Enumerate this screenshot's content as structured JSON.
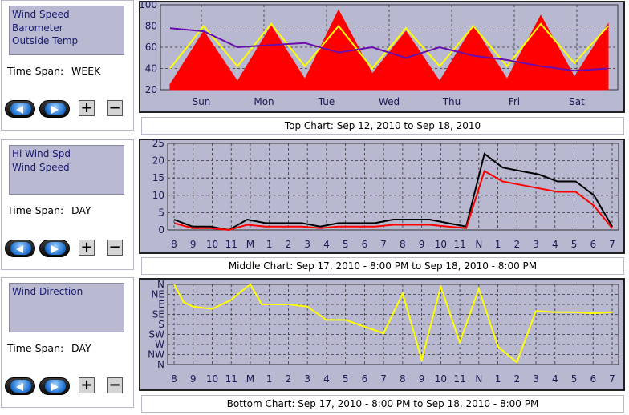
{
  "panels": [
    {
      "series": [
        "Wind Speed",
        "Barometer",
        "Outside Temp"
      ],
      "timespan_label": "Time Span:",
      "timespan_value": "WEEK"
    },
    {
      "series": [
        "Hi Wind Spd",
        "Wind Speed"
      ],
      "timespan_label": "Time Span:",
      "timespan_value": "DAY"
    },
    {
      "series": [
        "Wind Direction"
      ],
      "timespan_label": "Time Span:",
      "timespan_value": "DAY"
    }
  ],
  "controls": {
    "zoom_in": "+",
    "zoom_out": "−"
  },
  "captions": {
    "top": "Top Chart:  Sep 12, 2010  to  Sep 18, 2010",
    "middle": "Middle Chart:  Sep 17, 2010 - 8:00 PM  to  Sep 18, 2010 - 8:00 PM",
    "bottom": "Bottom Chart:  Sep 17, 2010 - 8:00 PM  to  Sep 18, 2010 - 8:00 PM"
  },
  "colors": {
    "plot_bg": "#b8b8d0",
    "wind": "#ff0000",
    "hi_wind": "#000000",
    "barometer": "#6a0dad",
    "temp": "#ffff00",
    "direction": "#ffff00"
  },
  "chart_data": [
    {
      "type": "line",
      "ylim": [
        20,
        100
      ],
      "yticks": [
        "20",
        "40",
        "60",
        "80",
        "100"
      ],
      "xticks": [
        "Sun",
        "Mon",
        "Tue",
        "Wed",
        "Thu",
        "Fri",
        "Sat"
      ],
      "x": [
        0,
        0.5,
        1,
        1.5,
        2,
        2.5,
        3,
        3.5,
        4,
        4.5,
        5,
        5.5,
        6,
        6.5
      ],
      "series": [
        {
          "key": "wind",
          "style": "area",
          "values": [
            25,
            75,
            28,
            80,
            30,
            95,
            35,
            75,
            28,
            80,
            30,
            90,
            32,
            82
          ]
        },
        {
          "key": "temp",
          "style": "line",
          "values": [
            40,
            80,
            42,
            82,
            42,
            80,
            40,
            78,
            42,
            80,
            42,
            82,
            45,
            80
          ]
        },
        {
          "key": "barometer",
          "style": "line",
          "values": [
            78,
            75,
            60,
            62,
            64,
            55,
            60,
            50,
            60,
            52,
            48,
            42,
            38,
            40
          ]
        }
      ]
    },
    {
      "type": "line",
      "ylim": [
        0,
        25
      ],
      "yticks": [
        "0",
        "5",
        "10",
        "15",
        "20",
        "25"
      ],
      "xticks": [
        "8",
        "9",
        "10",
        "11",
        "M",
        "1",
        "2",
        "3",
        "4",
        "5",
        "6",
        "7",
        "8",
        "9",
        "10",
        "11",
        "N",
        "1",
        "2",
        "3",
        "4",
        "5",
        "6",
        "7"
      ],
      "x": [
        0,
        1,
        2,
        3,
        4,
        5,
        6,
        7,
        8,
        9,
        10,
        11,
        12,
        13,
        14,
        15,
        16,
        17,
        18,
        19,
        20,
        21,
        22,
        23,
        24
      ],
      "series": [
        {
          "key": "hi_wind",
          "values": [
            3,
            1,
            1,
            0,
            3,
            2,
            2,
            2,
            1,
            2,
            2,
            2,
            3,
            3,
            3,
            2,
            1,
            22,
            18,
            17,
            16,
            14,
            14,
            10,
            1
          ]
        },
        {
          "key": "wind",
          "values": [
            2,
            0.5,
            0.5,
            0,
            1.5,
            1,
            1,
            1,
            0.5,
            1,
            1,
            1,
            1.5,
            1.5,
            1.5,
            1,
            0.5,
            17,
            14,
            13,
            12,
            11,
            11,
            7,
            0.5
          ]
        }
      ]
    },
    {
      "type": "line",
      "yticks": [
        "N",
        "NW",
        "W",
        "SW",
        "S",
        "SE",
        "E",
        "NE",
        "N"
      ],
      "ylim": [
        0,
        360
      ],
      "xticks": [
        "8",
        "9",
        "10",
        "11",
        "M",
        "1",
        "2",
        "3",
        "4",
        "5",
        "6",
        "7",
        "8",
        "9",
        "10",
        "11",
        "N",
        "1",
        "2",
        "3",
        "4",
        "5",
        "6",
        "7"
      ],
      "x": [
        0,
        0.5,
        1,
        2,
        3,
        3.4,
        4,
        4.6,
        5,
        6,
        7,
        8,
        9,
        10,
        11,
        12,
        13,
        14,
        15,
        16,
        17,
        18,
        19,
        20,
        21,
        22,
        23
      ],
      "series": [
        {
          "key": "direction",
          "values": [
            360,
            280,
            260,
            250,
            290,
            320,
            360,
            270,
            270,
            270,
            260,
            200,
            200,
            170,
            140,
            320,
            20,
            350,
            100,
            340,
            80,
            10,
            240,
            235,
            235,
            230,
            235
          ]
        }
      ]
    }
  ]
}
